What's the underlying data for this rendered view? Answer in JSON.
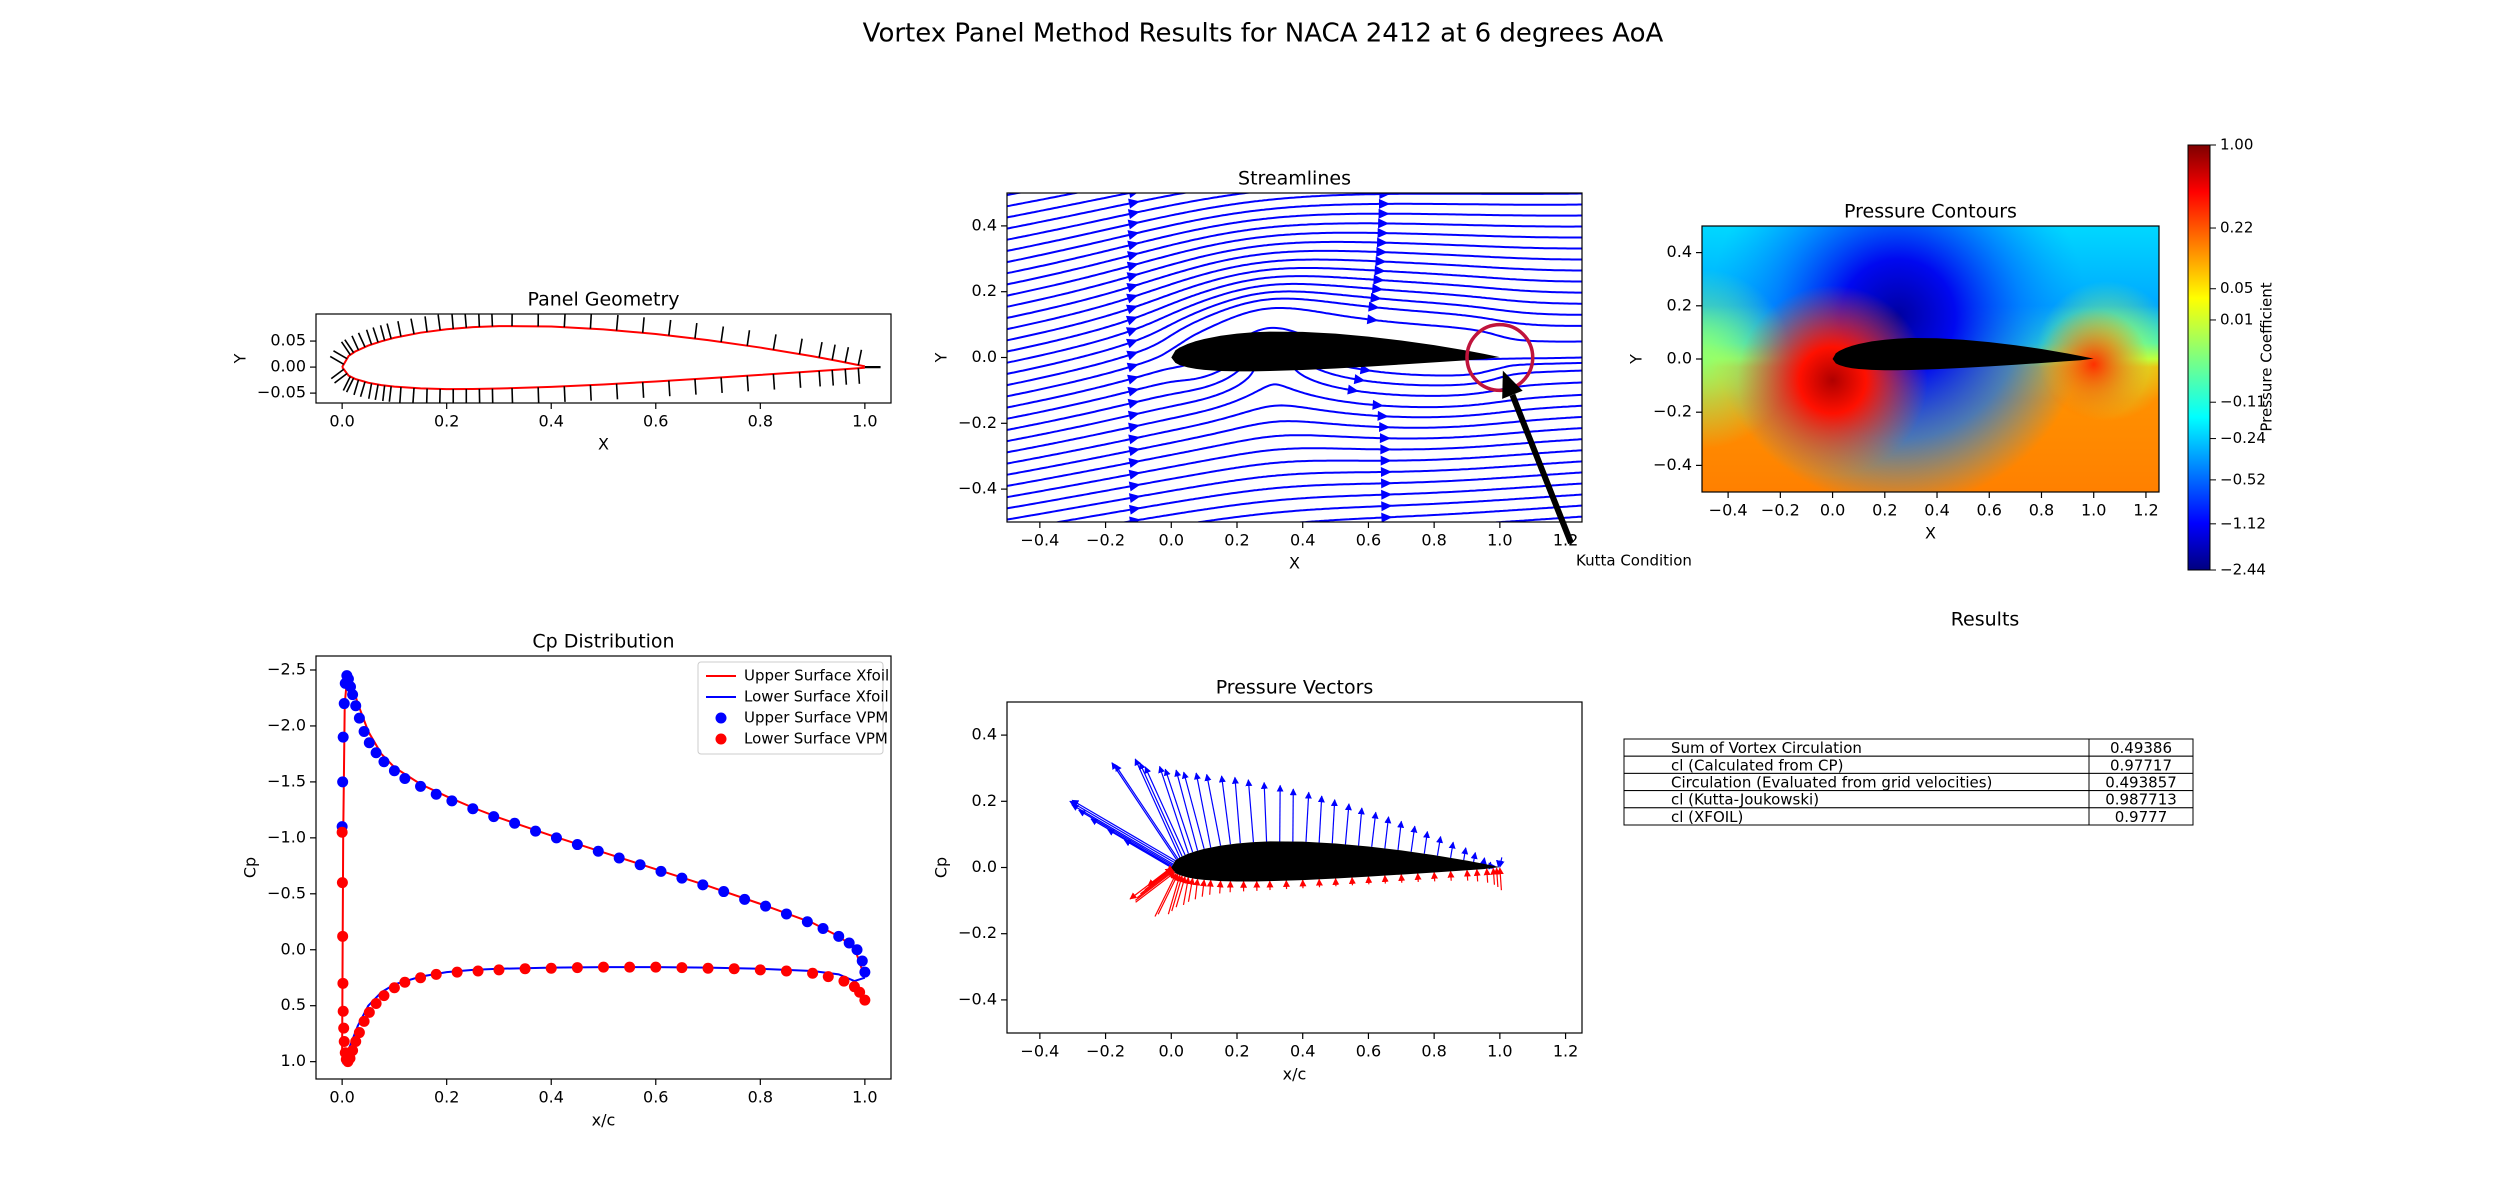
{
  "title": "Vortex Panel Method Results for NACA 2412 at 6 degrees AoA",
  "chart_data": [
    {
      "type": "line",
      "title": "Panel Geometry",
      "xlabel": "X",
      "ylabel": "Y",
      "x": [
        0,
        0.0125,
        0.025,
        0.05,
        0.075,
        0.1,
        0.15,
        0.2,
        0.25,
        0.3,
        0.4,
        0.5,
        0.6,
        0.7,
        0.8,
        0.9,
        0.95,
        1.0
      ],
      "series": [
        {
          "color": "red",
          "values": [
            0,
            0.0215,
            0.0299,
            0.0413,
            0.0496,
            0.0563,
            0.0661,
            0.0726,
            0.0767,
            0.0788,
            0.078,
            0.0724,
            0.0636,
            0.0518,
            0.0375,
            0.0208,
            0.0114,
            0.0013
          ]
        },
        {
          "color": "red",
          "values": [
            0,
            -0.0165,
            -0.0227,
            -0.0301,
            -0.0346,
            -0.0375,
            -0.041,
            -0.0423,
            -0.0422,
            -0.0412,
            -0.038,
            -0.0334,
            -0.0276,
            -0.0214,
            -0.015,
            -0.0082,
            -0.0048,
            -0.0013
          ]
        }
      ],
      "normal_color": "black",
      "xlim": [
        -0.05,
        1.05
      ],
      "ylim": [
        -0.069,
        0.102
      ],
      "xticks": [
        {
          "value": 0,
          "label": "0.0"
        },
        0.2,
        0.4,
        0.6,
        0.8,
        {
          "value": 1,
          "label": "1.0"
        }
      ],
      "yticks": [
        {
          "value": -0.05,
          "label": "−0.05"
        },
        {
          "value": 0,
          "label": "0.00"
        },
        0.05
      ]
    },
    {
      "type": "streamplot",
      "title": "Streamlines",
      "xlabel": "X",
      "ylabel": "Y",
      "color": "blue",
      "annotation": "Kutta Condition",
      "circle_color": "#c0143c",
      "xlim": [
        -0.5,
        1.25
      ],
      "ylim": [
        -0.5,
        0.5
      ],
      "xticks": [
        {
          "value": -0.4,
          "label": "−0.4"
        },
        {
          "value": -0.2,
          "label": "−0.2"
        },
        {
          "value": 0,
          "label": "0.0"
        },
        0.2,
        0.4,
        0.6,
        0.8,
        {
          "value": 1,
          "label": "1.0"
        },
        1.2
      ],
      "yticks": [
        {
          "value": -0.4,
          "label": "−0.4"
        },
        {
          "value": -0.2,
          "label": "−0.2"
        },
        {
          "value": 0,
          "label": "0.0"
        },
        0.2,
        0.4
      ]
    },
    {
      "type": "contour",
      "title": "Pressure Contours",
      "xlabel": "X",
      "ylabel": "Y",
      "colormap": "jet",
      "colorbar_label": "Pressure Coefficient",
      "clim": [
        -2.44,
        1
      ],
      "colorbar_scale": "symlog",
      "colorbar_linthresh": 0.05,
      "colorbar_ticks": [
        {
          "value": 1,
          "label": "1.00"
        },
        0.22,
        0.05,
        0.01,
        {
          "value": -0.11,
          "label": "−0.11"
        },
        {
          "value": -0.24,
          "label": "−0.24"
        },
        {
          "value": -0.52,
          "label": "−0.52"
        },
        {
          "value": -1.12,
          "label": "−1.12"
        },
        {
          "value": -2.44,
          "label": "−2.44"
        }
      ],
      "xlim": [
        -0.5,
        1.25
      ],
      "ylim": [
        -0.5,
        0.5
      ],
      "xticks": [
        {
          "value": -0.4,
          "label": "−0.4"
        },
        {
          "value": -0.2,
          "label": "−0.2"
        },
        {
          "value": 0,
          "label": "0.0"
        },
        0.2,
        0.4,
        0.6,
        0.8,
        {
          "value": 1,
          "label": "1.0"
        },
        1.2
      ],
      "yticks": [
        {
          "value": -0.4,
          "label": "−0.4"
        },
        {
          "value": -0.2,
          "label": "−0.2"
        },
        {
          "value": 0,
          "label": "0.0"
        },
        0.2,
        0.4
      ]
    },
    {
      "type": "line",
      "title": "Cp Distribution",
      "xlabel": "x/c",
      "ylabel": "Cp",
      "legend": "upper right",
      "series": [
        {
          "name": "Upper Surface Xfoil",
          "color": "red",
          "x": [
            0,
            0.002,
            0.005,
            0.01,
            0.02,
            0.03,
            0.05,
            0.075,
            0.1,
            0.15,
            0.2,
            0.25,
            0.3,
            0.4,
            0.5,
            0.6,
            0.7,
            0.8,
            0.9,
            0.95,
            0.98,
            1.0
          ],
          "values": [
            0.9,
            -1.0,
            -2.2,
            -2.45,
            -2.35,
            -2.2,
            -1.95,
            -1.75,
            -1.63,
            -1.48,
            -1.37,
            -1.27,
            -1.18,
            -1.02,
            -0.87,
            -0.72,
            -0.57,
            -0.41,
            -0.24,
            -0.12,
            -0.02,
            0.25
          ]
        },
        {
          "name": "Lower Surface Xfoil",
          "color": "blue",
          "x": [
            0,
            0.002,
            0.005,
            0.01,
            0.02,
            0.03,
            0.05,
            0.075,
            0.1,
            0.15,
            0.2,
            0.25,
            0.3,
            0.4,
            0.5,
            0.6,
            0.7,
            0.8,
            0.9,
            0.95,
            0.98,
            1.0
          ],
          "values": [
            0.9,
            1.0,
            0.98,
            0.92,
            0.8,
            0.68,
            0.5,
            0.38,
            0.31,
            0.24,
            0.2,
            0.18,
            0.17,
            0.16,
            0.155,
            0.155,
            0.16,
            0.17,
            0.19,
            0.22,
            0.28,
            0.25
          ]
        },
        {
          "name": "Upper Surface VPM",
          "color": "blue",
          "marker": true,
          "x": [
            0.0,
            0.001,
            0.002,
            0.004,
            0.006,
            0.009,
            0.012,
            0.016,
            0.02,
            0.026,
            0.033,
            0.042,
            0.052,
            0.065,
            0.08,
            0.1,
            0.12,
            0.15,
            0.18,
            0.21,
            0.25,
            0.29,
            0.33,
            0.37,
            0.41,
            0.45,
            0.49,
            0.53,
            0.57,
            0.61,
            0.65,
            0.69,
            0.73,
            0.77,
            0.81,
            0.85,
            0.89,
            0.92,
            0.95,
            0.97,
            0.985,
            0.995,
            1.0
          ],
          "values": [
            -1.1,
            -1.5,
            -1.9,
            -2.2,
            -2.38,
            -2.45,
            -2.42,
            -2.35,
            -2.28,
            -2.18,
            -2.07,
            -1.95,
            -1.85,
            -1.76,
            -1.68,
            -1.6,
            -1.53,
            -1.46,
            -1.39,
            -1.33,
            -1.26,
            -1.19,
            -1.13,
            -1.06,
            -1.0,
            -0.94,
            -0.88,
            -0.82,
            -0.76,
            -0.7,
            -0.64,
            -0.58,
            -0.52,
            -0.45,
            -0.39,
            -0.32,
            -0.25,
            -0.19,
            -0.12,
            -0.06,
            0.0,
            0.1,
            0.2
          ]
        },
        {
          "name": "Lower Surface VPM",
          "color": "red",
          "marker": true,
          "x": [
            0.0,
            0.0005,
            0.001,
            0.0015,
            0.002,
            0.003,
            0.004,
            0.006,
            0.008,
            0.011,
            0.015,
            0.02,
            0.026,
            0.033,
            0.042,
            0.052,
            0.065,
            0.08,
            0.1,
            0.12,
            0.15,
            0.18,
            0.22,
            0.26,
            0.3,
            0.35,
            0.4,
            0.45,
            0.5,
            0.55,
            0.6,
            0.65,
            0.7,
            0.75,
            0.8,
            0.85,
            0.9,
            0.93,
            0.96,
            0.98,
            0.99,
            1.0
          ],
          "values": [
            -1.05,
            -0.6,
            -0.12,
            0.3,
            0.55,
            0.7,
            0.82,
            0.92,
            0.98,
            1.0,
            0.97,
            0.9,
            0.82,
            0.74,
            0.64,
            0.56,
            0.48,
            0.41,
            0.34,
            0.29,
            0.25,
            0.22,
            0.2,
            0.19,
            0.18,
            0.17,
            0.165,
            0.16,
            0.155,
            0.155,
            0.155,
            0.16,
            0.165,
            0.17,
            0.18,
            0.19,
            0.21,
            0.24,
            0.28,
            0.33,
            0.38,
            0.45
          ]
        }
      ],
      "xlim": [
        -0.05,
        1.05
      ],
      "ylim": [
        1.155,
        -2.625
      ],
      "xticks": [
        {
          "value": 0,
          "label": "0.0"
        },
        0.2,
        0.4,
        0.6,
        0.8,
        {
          "value": 1,
          "label": "1.0"
        }
      ],
      "yticks": [
        {
          "value": -2.5,
          "label": "−2.5"
        },
        {
          "value": -2,
          "label": "−2.0"
        },
        {
          "value": -1.5,
          "label": "−1.5"
        },
        {
          "value": -1,
          "label": "−1.0"
        },
        {
          "value": -0.5,
          "label": "−0.5"
        },
        {
          "value": 0,
          "label": "0.0"
        },
        0.5,
        {
          "value": 1,
          "label": "1.0"
        }
      ]
    },
    {
      "type": "quiver",
      "title": "Pressure Vectors",
      "xlabel": "x/c",
      "ylabel": "Cp",
      "upper_color": "blue",
      "lower_color": "red",
      "xlim": [
        -0.5,
        1.25
      ],
      "ylim": [
        -0.5,
        0.5
      ],
      "xticks": [
        {
          "value": -0.4,
          "label": "−0.4"
        },
        {
          "value": -0.2,
          "label": "−0.2"
        },
        {
          "value": 0,
          "label": "0.0"
        },
        0.2,
        0.4,
        0.6,
        0.8,
        {
          "value": 1,
          "label": "1.0"
        },
        1.2
      ],
      "yticks": [
        {
          "value": -0.4,
          "label": "−0.4"
        },
        {
          "value": -0.2,
          "label": "−0.2"
        },
        {
          "value": 0,
          "label": "0.0"
        },
        0.2,
        0.4
      ]
    }
  ],
  "results": {
    "title": "Results",
    "rows": [
      [
        "Sum of Vortex Circulation",
        0.49386
      ],
      [
        "cl (Calculated from CP)",
        0.97717
      ],
      [
        "Circulation (Evaluated from grid velocities)",
        0.493857
      ],
      [
        "cl (Kutta-Joukowski)",
        0.987713
      ],
      [
        "cl (XFOIL)",
        0.9777
      ]
    ]
  }
}
